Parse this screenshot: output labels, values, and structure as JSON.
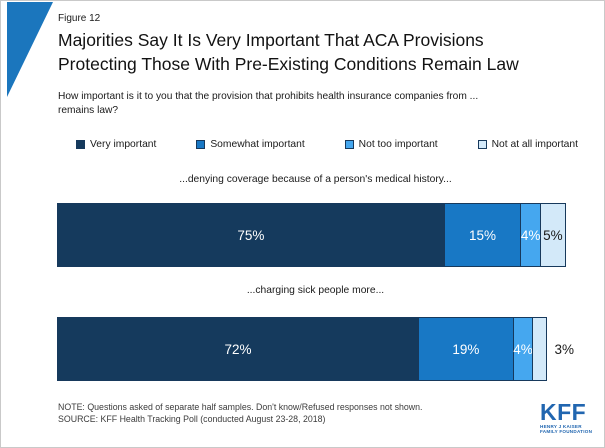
{
  "figure_label": "Figure 12",
  "title_lines": [
    "Majorities Say It Is Very Important That ACA Provisions",
    "Protecting Those With Pre-Existing Conditions Remain Law"
  ],
  "question_lines": [
    "How important is it to you that the provision that prohibits health insurance companies from ...",
    "remains law?"
  ],
  "legend": [
    {
      "label": "Very important",
      "color": "#153a5d"
    },
    {
      "label": "Somewhat important",
      "color": "#1878c5"
    },
    {
      "label": "Not too important",
      "color": "#45a7ef"
    },
    {
      "label": "Not at all important",
      "color": "#d3e9f9"
    }
  ],
  "chart_data": {
    "type": "bar",
    "orientation": "horizontal-stacked",
    "categories": [
      "...denying coverage because of a person's medical history...",
      "...charging sick people more..."
    ],
    "series": [
      {
        "name": "Very important",
        "color": "#153a5d",
        "text_color": "#ffffff",
        "values": [
          75,
          72
        ]
      },
      {
        "name": "Somewhat important",
        "color": "#1878c5",
        "text_color": "#ffffff",
        "values": [
          15,
          19
        ]
      },
      {
        "name": "Not too important",
        "color": "#45a7ef",
        "text_color": "#ffffff",
        "values": [
          4,
          4
        ]
      },
      {
        "name": "Not at all important",
        "color": "#d3e9f9",
        "text_color": "#1a1a1a",
        "values": [
          5,
          3
        ]
      }
    ],
    "value_labels": [
      [
        "75%",
        "15%",
        "4%",
        "5%"
      ],
      [
        "72%",
        "19%",
        "4%",
        "3%"
      ]
    ],
    "label_outside": [
      [
        false,
        false,
        false,
        false
      ],
      [
        false,
        false,
        false,
        true
      ]
    ],
    "xlim": [
      0,
      100
    ],
    "grid": false,
    "legend_position": "top"
  },
  "footer": {
    "note": "NOTE: Questions asked of separate half samples. Don't know/Refused responses not shown.",
    "source": "SOURCE: KFF Health Tracking Poll (conducted August 23-28, 2018)"
  },
  "logo": {
    "text": "KFF",
    "sub_lines": [
      "HENRY J KAISER",
      "FAMILY FOUNDATION"
    ]
  },
  "colors": {
    "accent_triangle": "#1b76bd",
    "segment_border": "#17395c",
    "logo_blue": "#2166b0"
  }
}
